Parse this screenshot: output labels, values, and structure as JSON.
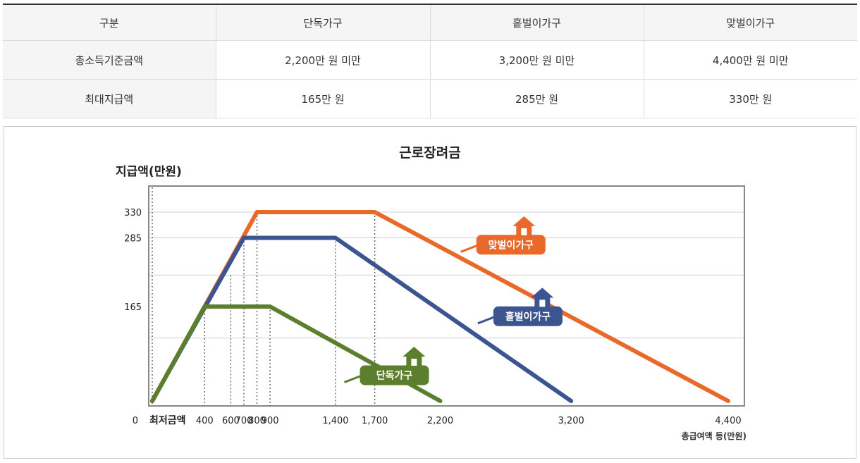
{
  "table": {
    "headers": [
      "구분",
      "단독가구",
      "홑벌이가구",
      "맞벌이가구"
    ],
    "rows": [
      [
        "총소득기준금액",
        "2,200만 원 미만",
        "3,200만 원 미만",
        "4,400만 원 미만"
      ],
      [
        "최대지급액",
        "165만 원",
        "285만 원",
        "330만 원"
      ]
    ]
  },
  "chart_data": {
    "type": "line",
    "title": "근로장려금",
    "ylabel": "지급액(만원)",
    "xlabel": "총급여액 등(만원)",
    "x_origin_label": "최저금액",
    "y_origin_label": "0",
    "xlim": [
      0,
      4400
    ],
    "ylim": [
      0,
      330
    ],
    "x_ticks": [
      {
        "value": 400,
        "label": "400"
      },
      {
        "value": 600,
        "label": "600"
      },
      {
        "value": 700,
        "label": "700"
      },
      {
        "value": 800,
        "label": "800"
      },
      {
        "value": 900,
        "label": "900"
      },
      {
        "value": 1400,
        "label": "1,400"
      },
      {
        "value": 1700,
        "label": "1,700"
      },
      {
        "value": 2200,
        "label": "2,200"
      },
      {
        "value": 3200,
        "label": "3,200"
      },
      {
        "value": 4400,
        "label": "4,400"
      }
    ],
    "y_ticks": [
      {
        "value": 165,
        "label": "165"
      },
      {
        "value": 285,
        "label": "285"
      },
      {
        "value": 330,
        "label": "330"
      }
    ],
    "gridlines_y": [
      110,
      220,
      285,
      330
    ],
    "dotted_x": [
      0,
      400,
      600,
      700,
      800,
      900,
      1400,
      1700
    ],
    "series": [
      {
        "name": "단독가구",
        "color": "#5b7f2c",
        "x": [
          0,
          400,
          900,
          2200
        ],
        "y": [
          0,
          165,
          165,
          0
        ],
        "label_at": [
          1850,
          45
        ],
        "icon_at": [
          2000,
          80
        ]
      },
      {
        "name": "홑벌이가구",
        "color": "#3a5590",
        "x": [
          0,
          700,
          1400,
          3200
        ],
        "y": [
          0,
          285,
          285,
          0
        ],
        "label_at": [
          2870,
          148
        ],
        "icon_at": [
          2980,
          183
        ]
      },
      {
        "name": "맞벌이가구",
        "color": "#e8692a",
        "x": [
          0,
          800,
          1700,
          4400
        ],
        "y": [
          0,
          330,
          330,
          0
        ],
        "label_at": [
          2740,
          273
        ],
        "icon_at": [
          2840,
          308
        ]
      }
    ]
  }
}
